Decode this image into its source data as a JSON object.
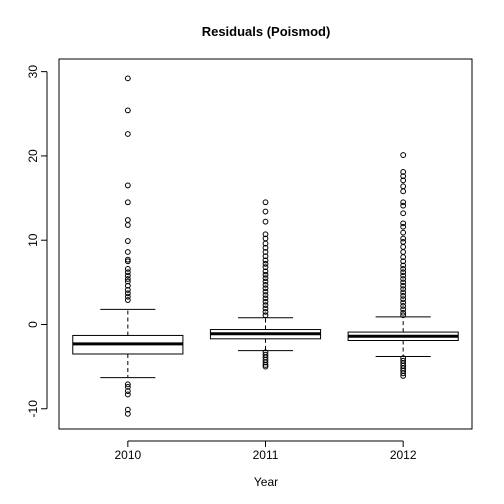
{
  "chart_data": {
    "type": "boxplot",
    "title": "Residuals (Poismod)",
    "xlabel": "Year",
    "ylabel": "",
    "ylim": [
      -12.4,
      31.5
    ],
    "yticks": [
      -10,
      0,
      10,
      20,
      30
    ],
    "grid": false,
    "legend": "none",
    "categories": [
      "2010",
      "2011",
      "2012"
    ],
    "boxes": [
      {
        "category": "2010",
        "whisker_low": -6.3,
        "q1": -3.5,
        "median": -2.3,
        "q3": -1.3,
        "whisker_high": 1.8,
        "outliers": [
          29.2,
          25.4,
          22.6,
          16.5,
          14.5,
          12.4,
          11.8,
          9.9,
          8.6,
          7.7,
          7.5,
          6.6,
          6.2,
          5.8,
          5.4,
          5.1,
          4.6,
          4.1,
          3.7,
          3.3,
          2.9,
          -7.1,
          -7.4,
          -7.9,
          -8.3,
          -10.1,
          -10.6
        ]
      },
      {
        "category": "2011",
        "whisker_low": -3.1,
        "q1": -1.7,
        "median": -1.1,
        "q3": -0.6,
        "whisker_high": 0.8,
        "outliers": [
          14.5,
          13.4,
          12.2,
          10.7,
          10.2,
          9.6,
          9.1,
          8.6,
          8.1,
          7.6,
          7.2,
          6.8,
          6.3,
          5.9,
          5.5,
          5.1,
          4.7,
          4.3,
          3.9,
          3.5,
          3.1,
          2.7,
          2.3,
          1.9,
          1.5,
          1.1,
          -3.3,
          -3.6,
          -3.9,
          -4.2,
          -4.5,
          -4.8,
          -5.0
        ]
      },
      {
        "category": "2012",
        "whisker_low": -3.8,
        "q1": -1.9,
        "median": -1.4,
        "q3": -0.9,
        "whisker_high": 0.9,
        "outliers": [
          20.1,
          18.1,
          17.6,
          17.1,
          16.4,
          15.8,
          14.5,
          14.1,
          13.2,
          12.0,
          11.6,
          10.9,
          10.2,
          9.8,
          9.2,
          8.6,
          8.0,
          7.5,
          7.0,
          6.6,
          6.2,
          5.8,
          5.4,
          5.0,
          4.6,
          4.2,
          3.8,
          3.4,
          3.0,
          2.6,
          2.2,
          1.8,
          1.4,
          1.1,
          -4.0,
          -4.3,
          -4.6,
          -4.9,
          -5.2,
          -5.5,
          -5.8,
          -6.1
        ]
      }
    ]
  }
}
